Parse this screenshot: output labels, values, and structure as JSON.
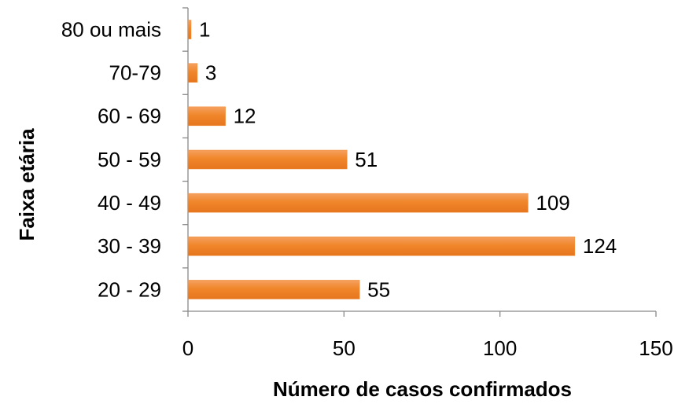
{
  "chart_data": {
    "type": "barh",
    "xlabel": "Número de casos confirmados",
    "ylabel": "Faixa etária",
    "categories": [
      "20 - 29",
      "30 - 39",
      "40 - 49",
      "50 - 59",
      "60 - 69",
      "70-79",
      "80 ou mais"
    ],
    "values": [
      55,
      124,
      109,
      51,
      12,
      3,
      1
    ],
    "color": "#f08a32",
    "xlim": [
      0,
      150
    ],
    "xticks": [
      0,
      50,
      100,
      150
    ],
    "grid": false
  }
}
